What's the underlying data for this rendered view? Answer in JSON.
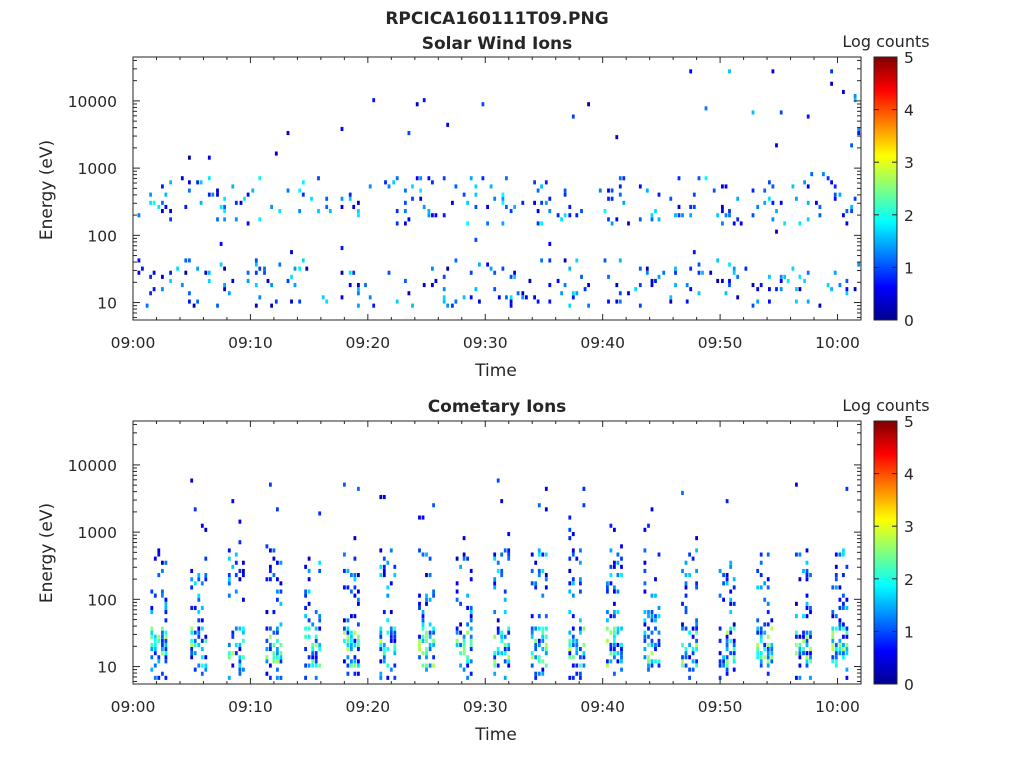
{
  "figure": {
    "filename": "RPCICA160111T09.PNG"
  },
  "colorbar": {
    "label": "Log counts",
    "min": 0,
    "max": 5,
    "ticks": [
      "0",
      "1",
      "2",
      "3",
      "4",
      "5"
    ]
  },
  "chart_data": [
    {
      "type": "heatmap",
      "title": "Solar Wind Ions",
      "xlabel": "Time",
      "ylabel": "Energy (eV)",
      "x_ticks": [
        "09:00",
        "09:10",
        "09:20",
        "09:30",
        "09:40",
        "09:50",
        "10:00"
      ],
      "x_range_minutes": [
        0,
        62
      ],
      "y_ticks": [
        "10",
        "100",
        "1000",
        "10000"
      ],
      "y_scale": "log",
      "y_range": [
        5.5,
        45000
      ],
      "z_label": "Log counts",
      "z_range": [
        0,
        5
      ],
      "scan_times": [
        0.5,
        1.5,
        2.5,
        3.5,
        4.5,
        5.5,
        6.5,
        7.5,
        8.5,
        9.5,
        10.5,
        11.5,
        12.5,
        13.5,
        14.5,
        15.5,
        16.5,
        17.5,
        18.5,
        19.5,
        20.5,
        21.5,
        22.5,
        23.5,
        24.5,
        25.5,
        26.5,
        27.5,
        28.5,
        29.5,
        30.5,
        31.5,
        32.5,
        33.5,
        34.5,
        35.5,
        36.5,
        37.5,
        38.5,
        39.5,
        40.5,
        41.5,
        42.5,
        43.5,
        44.5,
        45.5,
        46.5,
        47.5,
        48.5,
        49.5,
        50.5,
        51.5,
        52.5,
        53.5,
        54.5,
        55.5,
        56.5,
        57.5,
        58.5,
        59.5,
        60.5,
        61.5
      ],
      "bands": [
        {
          "e_low": 150,
          "e_high": 800,
          "density": 0.55,
          "z_range": [
            0.4,
            1.9
          ],
          "t_range": [
            0,
            62
          ]
        },
        {
          "e_low": 800,
          "e_high": 30000,
          "density": 0.06,
          "z_range": [
            0.2,
            1.6
          ],
          "t_range": [
            36,
            62
          ]
        },
        {
          "e_low": 1000,
          "e_high": 17000,
          "density": 0.02,
          "z_range": [
            0.2,
            1.0
          ],
          "t_range": [
            0,
            36
          ]
        },
        {
          "e_low": 8,
          "e_high": 45,
          "density": 0.45,
          "z_range": [
            0.2,
            1.8
          ],
          "t_range": [
            0,
            62
          ]
        },
        {
          "e_low": 50,
          "e_high": 140,
          "density": 0.03,
          "z_range": [
            0.3,
            1.0
          ],
          "t_range": [
            0,
            62
          ]
        }
      ]
    },
    {
      "type": "heatmap",
      "title": "Cometary Ions",
      "xlabel": "Time",
      "ylabel": "Energy (eV)",
      "x_ticks": [
        "09:00",
        "09:10",
        "09:20",
        "09:30",
        "09:40",
        "09:50",
        "10:00"
      ],
      "x_range_minutes": [
        0,
        62
      ],
      "y_ticks": [
        "10",
        "100",
        "1000",
        "10000"
      ],
      "y_scale": "log",
      "y_range": [
        5.5,
        45000
      ],
      "z_label": "Log counts",
      "z_range": [
        0,
        5
      ],
      "scan_times": [
        2.2,
        5.6,
        8.8,
        12.0,
        15.3,
        18.6,
        21.7,
        25.0,
        28.2,
        31.4,
        34.6,
        37.8,
        41.0,
        44.2,
        47.4,
        50.6,
        53.8,
        57.1,
        60.2
      ],
      "bands": [
        {
          "e_low": 10,
          "e_high": 40,
          "density": 0.95,
          "z_range": [
            0.5,
            2.8
          ],
          "t_range": [
            0,
            62
          ]
        },
        {
          "e_low": 40,
          "e_high": 600,
          "density": 0.35,
          "z_range": [
            0.3,
            1.8
          ],
          "t_range": [
            0,
            62
          ]
        },
        {
          "e_low": 600,
          "e_high": 6000,
          "density": 0.05,
          "z_range": [
            0.2,
            1.2
          ],
          "t_range": [
            0,
            62
          ]
        },
        {
          "e_low": 6,
          "e_high": 10,
          "density": 0.4,
          "z_range": [
            0.5,
            1.5
          ],
          "t_range": [
            0,
            62
          ]
        }
      ]
    }
  ]
}
